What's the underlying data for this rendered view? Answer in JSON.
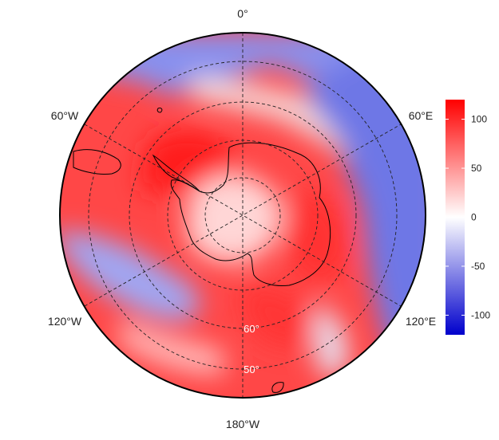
{
  "map": {
    "projection": "south-polar-stereographic",
    "longitude_labels": [
      "0°",
      "60°E",
      "120°E",
      "180°W",
      "120°W",
      "60°W"
    ],
    "latitude_labels": [
      "60°",
      "50°"
    ],
    "colorbar": {
      "ticks": [
        "100",
        "50",
        "0",
        "-50",
        "-100"
      ],
      "tick_values": [
        100,
        50,
        0,
        -50,
        -100
      ],
      "range": [
        -120,
        120
      ],
      "colors": [
        "#0000cc",
        "#ffffff",
        "#ff0000"
      ]
    }
  }
}
